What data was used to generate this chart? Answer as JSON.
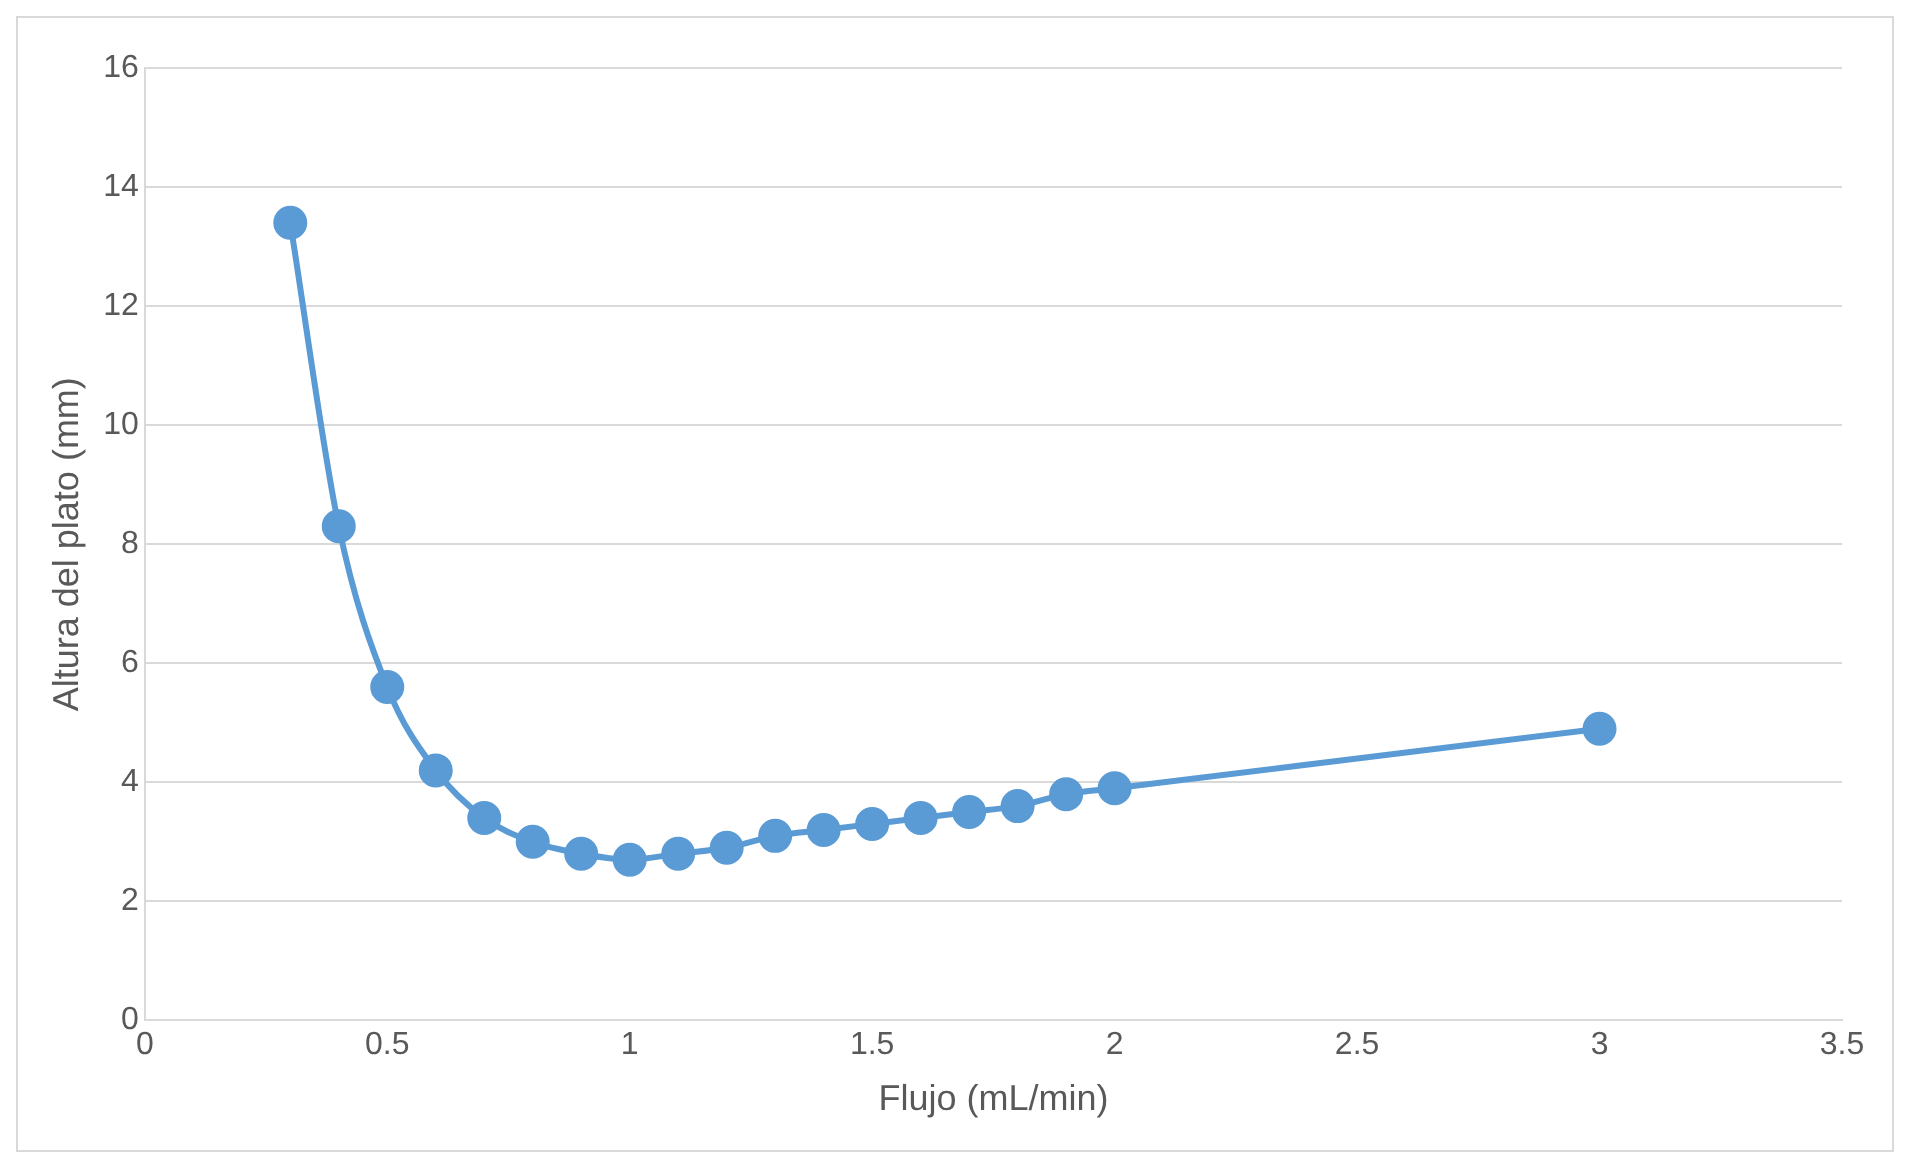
{
  "chart_data": {
    "type": "line",
    "xlabel": "Flujo (mL/min)",
    "ylabel": "Altura del plato (mm)",
    "x": [
      0.3,
      0.4,
      0.5,
      0.6,
      0.7,
      0.8,
      0.9,
      1.0,
      1.1,
      1.2,
      1.3,
      1.4,
      1.5,
      1.6,
      1.7,
      1.8,
      1.9,
      2.0,
      3.0
    ],
    "series": [
      {
        "color": "#5b9bd5",
        "values": [
          13.4,
          8.3,
          5.6,
          4.2,
          3.4,
          3.0,
          2.8,
          2.7,
          2.8,
          2.9,
          3.1,
          3.2,
          3.3,
          3.4,
          3.5,
          3.6,
          3.8,
          3.9,
          4.9
        ]
      }
    ],
    "xlim": [
      0,
      3.5
    ],
    "xticks": [
      0,
      0.5,
      1,
      1.5,
      2,
      2.5,
      3,
      3.5
    ],
    "ylim": [
      0,
      16
    ],
    "yticks": [
      0,
      2,
      4,
      6,
      8,
      10,
      12,
      14,
      16
    ],
    "grid": "y",
    "legend": false,
    "marker": "circle",
    "line_style": "solid"
  }
}
